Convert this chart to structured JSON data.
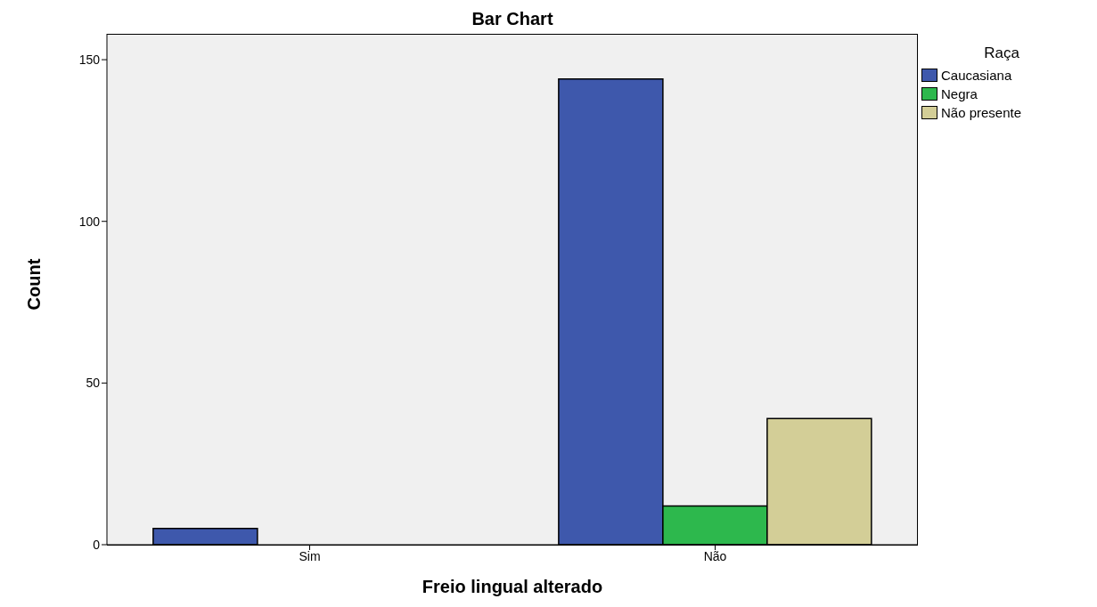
{
  "chart_data": {
    "type": "bar",
    "title": "Bar Chart",
    "xlabel": "Freio lingual alterado",
    "ylabel": "Count",
    "legend_title": "Raça",
    "categories": [
      "Sim",
      "Não"
    ],
    "series": [
      {
        "name": "Caucasiana",
        "color": "#3e58ac",
        "values": [
          5,
          144
        ]
      },
      {
        "name": "Negra",
        "color": "#2db84d",
        "values": [
          0,
          12
        ]
      },
      {
        "name": "Não presente",
        "color": "#d3ce97",
        "values": [
          0,
          39
        ]
      }
    ],
    "ylim": [
      0,
      158
    ],
    "yticks": [
      0,
      50,
      100,
      150
    ],
    "grid": false,
    "legend": "top right"
  }
}
